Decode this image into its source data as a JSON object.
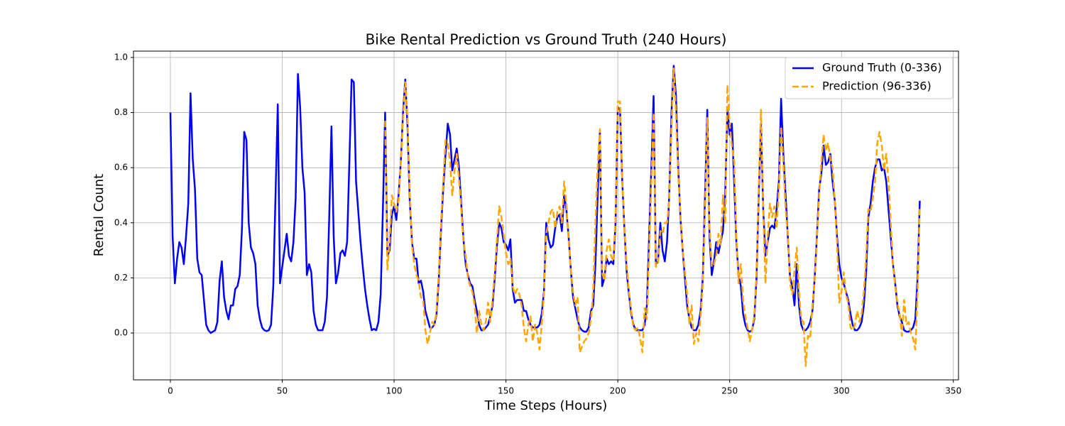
{
  "chart_data": {
    "type": "line",
    "title": "Bike Rental Prediction vs Ground Truth (240 Hours)",
    "xlabel": "Time Steps (Hours)",
    "ylabel": "Rental Count",
    "xlim": [
      -16.5,
      352.3
    ],
    "ylim": [
      -0.17,
      1.023
    ],
    "xticks": [
      0,
      50,
      100,
      150,
      200,
      250,
      300,
      350
    ],
    "yticks": [
      {
        "value": 0,
        "label": "0.0"
      },
      0.2,
      0.4,
      0.6,
      0.8,
      {
        "value": 1,
        "label": "1.0"
      }
    ],
    "grid": true,
    "legend": "upper right",
    "x": [
      0,
      1,
      2,
      3,
      4,
      5,
      6,
      7,
      8,
      9,
      10,
      11,
      12,
      13,
      14,
      15,
      16,
      17,
      18,
      19,
      20,
      21,
      22,
      23,
      24,
      25,
      26,
      27,
      28,
      29,
      30,
      31,
      32,
      33,
      34,
      35,
      36,
      37,
      38,
      39,
      40,
      41,
      42,
      43,
      44,
      45,
      46,
      47,
      48,
      49,
      50,
      51,
      52,
      53,
      54,
      55,
      56,
      57,
      58,
      59,
      60,
      61,
      62,
      63,
      64,
      65,
      66,
      67,
      68,
      69,
      70,
      71,
      72,
      73,
      74,
      75,
      76,
      77,
      78,
      79,
      80,
      81,
      82,
      83,
      84,
      85,
      86,
      87,
      88,
      89,
      90,
      91,
      92,
      93,
      94,
      95,
      96,
      97,
      98,
      99,
      100,
      101,
      102,
      103,
      104,
      105,
      106,
      107,
      108,
      109,
      110,
      111,
      112,
      113,
      114,
      115,
      116,
      117,
      118,
      119,
      120,
      121,
      122,
      123,
      124,
      125,
      126,
      127,
      128,
      129,
      130,
      131,
      132,
      133,
      134,
      135,
      136,
      137,
      138,
      139,
      140,
      141,
      142,
      143,
      144,
      145,
      146,
      147,
      148,
      149,
      150,
      151,
      152,
      153,
      154,
      155,
      156,
      157,
      158,
      159,
      160,
      161,
      162,
      163,
      164,
      165,
      166,
      167,
      168,
      169,
      170,
      171,
      172,
      173,
      174,
      175,
      176,
      177,
      178,
      179,
      180,
      181,
      182,
      183,
      184,
      185,
      186,
      187,
      188,
      189,
      190,
      191,
      192,
      193,
      194,
      195,
      196,
      197,
      198,
      199,
      200,
      201,
      202,
      203,
      204,
      205,
      206,
      207,
      208,
      209,
      210,
      211,
      212,
      213,
      214,
      215,
      216,
      217,
      218,
      219,
      220,
      221,
      222,
      223,
      224,
      225,
      226,
      227,
      228,
      229,
      230,
      231,
      232,
      233,
      234,
      235,
      236,
      237,
      238,
      239,
      240,
      241,
      242,
      243,
      244,
      245,
      246,
      247,
      248,
      249,
      250,
      251,
      252,
      253,
      254,
      255,
      256,
      257,
      258,
      259,
      260,
      261,
      262,
      263,
      264,
      265,
      266,
      267,
      268,
      269,
      270,
      271,
      272,
      273,
      274,
      275,
      276,
      277,
      278,
      279,
      280,
      281,
      282,
      283,
      284,
      285,
      286,
      287,
      288,
      289,
      290,
      291,
      292,
      293,
      294,
      295,
      296,
      297,
      298,
      299,
      300,
      301,
      302,
      303,
      304,
      305,
      306,
      307,
      308,
      309,
      310,
      311,
      312,
      313,
      314,
      315,
      316,
      317,
      318,
      319,
      320,
      321,
      322,
      323,
      324,
      325,
      326,
      327,
      328,
      329,
      330,
      331,
      332,
      333,
      334,
      335
    ],
    "series": [
      {
        "name": "Ground Truth (0-336)",
        "color": "#0000ff",
        "style": "solid",
        "values": [
          0.8,
          0.35,
          0.18,
          0.27,
          0.33,
          0.31,
          0.25,
          0.35,
          0.47,
          0.87,
          0.63,
          0.52,
          0.27,
          0.22,
          0.21,
          0.12,
          0.03,
          0.01,
          0.0,
          0.005,
          0.01,
          0.04,
          0.19,
          0.26,
          0.13,
          0.08,
          0.05,
          0.1,
          0.1,
          0.16,
          0.17,
          0.21,
          0.38,
          0.73,
          0.7,
          0.4,
          0.31,
          0.29,
          0.25,
          0.1,
          0.05,
          0.02,
          0.01,
          0.007,
          0.01,
          0.03,
          0.17,
          0.5,
          0.83,
          0.18,
          0.24,
          0.3,
          0.36,
          0.28,
          0.26,
          0.33,
          0.49,
          0.94,
          0.82,
          0.6,
          0.51,
          0.21,
          0.25,
          0.22,
          0.08,
          0.03,
          0.01,
          0.01,
          0.01,
          0.04,
          0.13,
          0.42,
          0.75,
          0.35,
          0.18,
          0.22,
          0.29,
          0.3,
          0.28,
          0.33,
          0.62,
          0.92,
          0.91,
          0.55,
          0.44,
          0.33,
          0.24,
          0.16,
          0.1,
          0.05,
          0.01,
          0.015,
          0.01,
          0.04,
          0.14,
          0.45,
          0.8,
          0.28,
          0.3,
          0.43,
          0.46,
          0.41,
          0.5,
          0.62,
          0.8,
          0.92,
          0.75,
          0.48,
          0.33,
          0.27,
          0.27,
          0.18,
          0.19,
          0.15,
          0.08,
          0.05,
          0.02,
          0.02,
          0.03,
          0.07,
          0.2,
          0.38,
          0.53,
          0.65,
          0.76,
          0.72,
          0.59,
          0.63,
          0.67,
          0.6,
          0.47,
          0.34,
          0.25,
          0.21,
          0.18,
          0.17,
          0.12,
          0.08,
          0.03,
          0.01,
          0.01,
          0.02,
          0.03,
          0.06,
          0.1,
          0.2,
          0.32,
          0.4,
          0.38,
          0.33,
          0.32,
          0.3,
          0.34,
          0.16,
          0.11,
          0.12,
          0.12,
          0.12,
          0.08,
          0.08,
          0.05,
          0.03,
          0.02,
          0.02,
          0.02,
          0.03,
          0.07,
          0.15,
          0.4,
          0.34,
          0.31,
          0.32,
          0.38,
          0.42,
          0.43,
          0.37,
          0.5,
          0.45,
          0.35,
          0.23,
          0.13,
          0.09,
          0.05,
          0.02,
          0.01,
          0.005,
          0.005,
          0.02,
          0.08,
          0.1,
          0.25,
          0.5,
          0.73,
          0.17,
          0.2,
          0.27,
          0.25,
          0.26,
          0.25,
          0.4,
          0.82,
          0.81,
          0.55,
          0.37,
          0.22,
          0.14,
          0.07,
          0.03,
          0.01,
          0.01,
          0.01,
          0.01,
          0.03,
          0.1,
          0.35,
          0.6,
          0.86,
          0.25,
          0.26,
          0.4,
          0.3,
          0.26,
          0.33,
          0.5,
          0.8,
          0.97,
          0.86,
          0.6,
          0.42,
          0.3,
          0.2,
          0.1,
          0.05,
          0.02,
          0.01,
          0.01,
          0.03,
          0.08,
          0.2,
          0.5,
          0.81,
          0.35,
          0.21,
          0.26,
          0.33,
          0.29,
          0.33,
          0.37,
          0.5,
          0.81,
          0.72,
          0.76,
          0.55,
          0.33,
          0.21,
          0.17,
          0.07,
          0.03,
          0.01,
          0.005,
          0.01,
          0.05,
          0.2,
          0.5,
          0.76,
          0.45,
          0.28,
          0.33,
          0.38,
          0.39,
          0.38,
          0.45,
          0.55,
          0.85,
          0.65,
          0.5,
          0.35,
          0.2,
          0.17,
          0.1,
          0.25,
          0.1,
          0.03,
          0.01,
          0.01,
          0.02,
          0.04,
          0.08,
          0.2,
          0.35,
          0.52,
          0.58,
          0.68,
          0.61,
          0.62,
          0.65,
          0.55,
          0.48,
          0.35,
          0.25,
          0.2,
          0.18,
          0.15,
          0.12,
          0.07,
          0.03,
          0.01,
          0.01,
          0.02,
          0.04,
          0.1,
          0.22,
          0.42,
          0.47,
          0.55,
          0.6,
          0.63,
          0.63,
          0.59,
          0.6,
          0.55,
          0.45,
          0.35,
          0.25,
          0.18,
          0.1,
          0.06,
          0.04,
          0.01,
          0.005,
          0.005,
          0.01,
          0.02,
          0.05,
          0.2,
          0.48
        ]
      },
      {
        "name": "Prediction (96-336)",
        "color": "#ffa500",
        "style": "dashed",
        "values": [
          null,
          null,
          null,
          null,
          null,
          null,
          null,
          null,
          null,
          null,
          null,
          null,
          null,
          null,
          null,
          null,
          null,
          null,
          null,
          null,
          null,
          null,
          null,
          null,
          null,
          null,
          null,
          null,
          null,
          null,
          null,
          null,
          null,
          null,
          null,
          null,
          null,
          null,
          null,
          null,
          null,
          null,
          null,
          null,
          null,
          null,
          null,
          null,
          null,
          null,
          null,
          null,
          null,
          null,
          null,
          null,
          null,
          null,
          null,
          null,
          null,
          null,
          null,
          null,
          null,
          null,
          null,
          null,
          null,
          null,
          null,
          null,
          null,
          null,
          null,
          null,
          null,
          null,
          null,
          null,
          null,
          null,
          null,
          null,
          null,
          null,
          null,
          null,
          null,
          null,
          null,
          null,
          null,
          null,
          null,
          null,
          0.77,
          0.23,
          0.33,
          0.5,
          0.47,
          0.44,
          0.48,
          0.62,
          0.78,
          0.91,
          0.78,
          0.5,
          0.32,
          0.25,
          0.21,
          0.19,
          0.13,
          0.12,
          0.01,
          -0.04,
          0.0,
          0.04,
          0.03,
          0.08,
          0.22,
          0.4,
          0.55,
          0.7,
          0.69,
          0.62,
          0.5,
          0.59,
          0.65,
          0.56,
          0.45,
          0.33,
          0.28,
          0.2,
          0.17,
          0.15,
          0.1,
          0.0,
          0.08,
          0.03,
          0.01,
          0.04,
          0.11,
          0.04,
          0.12,
          0.22,
          0.34,
          0.46,
          0.42,
          0.36,
          0.29,
          0.25,
          0.27,
          0.17,
          0.14,
          0.16,
          0.14,
          0.1,
          0.02,
          -0.03,
          0.03,
          0.06,
          -0.03,
          0.03,
          0.0,
          -0.06,
          0.03,
          0.14,
          0.36,
          0.4,
          0.44,
          0.45,
          0.38,
          0.44,
          0.46,
          0.4,
          0.55,
          0.47,
          0.34,
          0.23,
          0.15,
          0.1,
          0.13,
          -0.07,
          -0.05,
          -0.03,
          -0.02,
          0.0,
          0.05,
          0.15,
          0.4,
          0.6,
          0.74,
          0.22,
          0.19,
          0.3,
          0.34,
          0.28,
          0.26,
          0.42,
          0.84,
          0.84,
          0.55,
          0.37,
          0.24,
          0.15,
          0.08,
          0.02,
          0.01,
          0.02,
          -0.02,
          -0.07,
          0.09,
          0.05,
          0.3,
          0.55,
          0.8,
          0.24,
          0.25,
          0.37,
          0.36,
          0.4,
          0.4,
          0.48,
          0.75,
          0.96,
          0.8,
          0.58,
          0.43,
          0.3,
          0.22,
          0.14,
          0.03,
          0.1,
          -0.04,
          0.0,
          -0.03,
          0.06,
          0.18,
          0.45,
          0.78,
          0.38,
          0.24,
          0.25,
          0.28,
          0.36,
          0.32,
          0.5,
          0.4,
          0.9,
          0.76,
          0.68,
          0.62,
          0.35,
          0.18,
          0.25,
          0.12,
          0.06,
          0.02,
          -0.03,
          0.01,
          0.06,
          0.22,
          0.52,
          0.81,
          0.45,
          0.18,
          0.35,
          0.47,
          0.42,
          0.46,
          0.38,
          0.52,
          0.75,
          0.62,
          0.45,
          0.36,
          0.18,
          0.14,
          0.23,
          0.31,
          0.15,
          0.05,
          0.04,
          -0.12,
          -0.01,
          -0.02,
          0.1,
          0.19,
          0.34,
          0.5,
          0.62,
          0.72,
          0.66,
          0.69,
          0.63,
          0.6,
          0.48,
          0.33,
          0.11,
          0.15,
          0.22,
          0.14,
          0.11,
          0.02,
          0.01,
          0.03,
          0.08,
          0.04,
          0.07,
          0.15,
          0.27,
          0.45,
          0.44,
          0.49,
          0.55,
          0.69,
          0.73,
          0.68,
          0.59,
          0.65,
          0.55,
          0.4,
          0.25,
          0.17,
          0.11,
          0.07,
          -0.01,
          0.12,
          0.03,
          0.04,
          0.0,
          -0.02,
          -0.06,
          0.15,
          0.46
        ]
      }
    ]
  }
}
